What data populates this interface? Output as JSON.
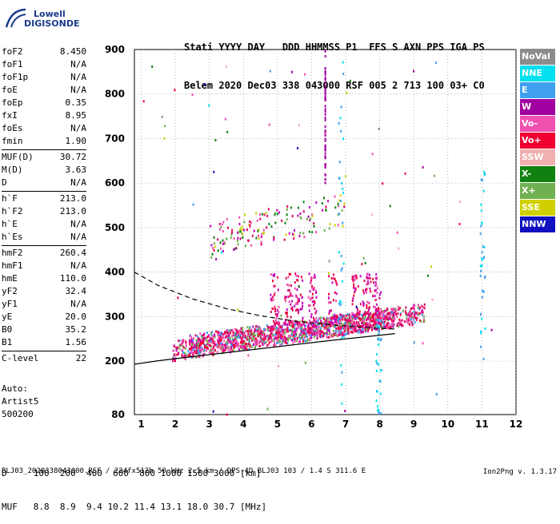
{
  "logo": {
    "line1": "Lowell",
    "line2": "DIGISONDE"
  },
  "header": {
    "labels": "Stati YYYY DAY   DDD HHMMSS P1  FFS S AXN PPS IGA PS",
    "values": "Belem 2020 Dec03 338 043000 RSF 005 2 713 100 03+ C0"
  },
  "params_a": [
    {
      "k": "foF2",
      "v": "8.450"
    },
    {
      "k": "foF1",
      "v": "N/A"
    },
    {
      "k": "foF1p",
      "v": "N/A"
    },
    {
      "k": "foE",
      "v": "N/A"
    },
    {
      "k": "foEp",
      "v": "0.35"
    },
    {
      "k": "fxI",
      "v": "8.95"
    },
    {
      "k": "foEs",
      "v": "N/A"
    },
    {
      "k": "fmin",
      "v": "1.90"
    }
  ],
  "params_b": [
    {
      "k": "MUF(D)",
      "v": "30.72"
    },
    {
      "k": "M(D)",
      "v": "3.63"
    },
    {
      "k": "D",
      "v": "N/A"
    }
  ],
  "params_c": [
    {
      "k": "h`F",
      "v": "213.0"
    },
    {
      "k": "h`F2",
      "v": "213.0"
    },
    {
      "k": "h`E",
      "v": "N/A"
    },
    {
      "k": "h`Es",
      "v": "N/A"
    }
  ],
  "params_d": [
    {
      "k": "hmF2",
      "v": "260.4"
    },
    {
      "k": "hmF1",
      "v": "N/A"
    },
    {
      "k": "hmE",
      "v": "110.0"
    },
    {
      "k": "yF2",
      "v": "32.4"
    },
    {
      "k": "yF1",
      "v": "N/A"
    },
    {
      "k": "yE",
      "v": "20.0"
    },
    {
      "k": "B0",
      "v": "35.2"
    },
    {
      "k": "B1",
      "v": "1.56"
    }
  ],
  "params_e": [
    {
      "k": "C-level",
      "v": "22"
    }
  ],
  "auto": {
    "l1": "Auto:",
    "l2": "Artist5",
    "l3": "500200"
  },
  "legend": [
    {
      "label": "NoVal",
      "color": "#8c8c8c"
    },
    {
      "label": "NNE",
      "color": "#00e0f0"
    },
    {
      "label": "E",
      "color": "#40a0f0"
    },
    {
      "label": "W",
      "color": "#a000a0"
    },
    {
      "label": "Vo-",
      "color": "#f050b0"
    },
    {
      "label": "Vo+",
      "color": "#f00030"
    },
    {
      "label": "SSW",
      "color": "#f0b0b0"
    },
    {
      "label": "X-",
      "color": "#108010"
    },
    {
      "label": "X+",
      "color": "#70b050"
    },
    {
      "label": "SSE",
      "color": "#d0d000"
    },
    {
      "label": "NNW",
      "color": "#1010c0"
    }
  ],
  "chart_data": {
    "type": "scatter",
    "title": "",
    "xlabel": "",
    "ylabel": "",
    "xlim": [
      0.8,
      12
    ],
    "ylim": [
      80,
      900
    ],
    "xticks": [
      "1",
      "2",
      "3",
      "4",
      "5",
      "6",
      "7",
      "8",
      "9",
      "10",
      "11",
      "12"
    ],
    "yticks": [
      "80",
      "200",
      "300",
      "400",
      "500",
      "600",
      "700",
      "800",
      "900"
    ],
    "ytick_values": [
      80,
      200,
      300,
      400,
      500,
      600,
      700,
      800,
      900
    ],
    "profile_solid": [
      [
        0.8,
        193
      ],
      [
        1.5,
        201
      ],
      [
        2.5,
        210
      ],
      [
        3.5,
        219
      ],
      [
        4.5,
        228
      ],
      [
        5.5,
        237
      ],
      [
        6.5,
        246
      ],
      [
        7.5,
        254
      ],
      [
        8.45,
        262
      ]
    ],
    "profile_dashed": [
      [
        0.8,
        400
      ],
      [
        1.5,
        370
      ],
      [
        2.5,
        340
      ],
      [
        3.5,
        318
      ],
      [
        4.5,
        302
      ],
      [
        5.5,
        290
      ],
      [
        6.5,
        282
      ],
      [
        7.5,
        276
      ],
      [
        8.45,
        272
      ]
    ],
    "traces": [
      {
        "name": "o-trace",
        "color": "#e00060",
        "x_from": 1.9,
        "x_to": 8.4,
        "h_from": 225,
        "h_to": 300
      },
      {
        "name": "x-trace",
        "color": "#f050b0",
        "x_from": 2.4,
        "x_to": 9.3,
        "h_from": 240,
        "h_to": 310
      }
    ]
  },
  "distance_table": {
    "d_row": "D     100  200  400  600  800 1000 1500 3000 [km]",
    "muf_row": "MUF   8.8  8.9  9.4 10.2 11.4 13.1 18.0 30.7 [MHz]"
  },
  "footer": "BLJ03_2020338043000.RSF / 224fx512h 50 kHz 2.5 km / DPS-4D BLJ03 103 / 1.4 S 311.6 E",
  "version": "Ion2Png v. 1.3.17"
}
